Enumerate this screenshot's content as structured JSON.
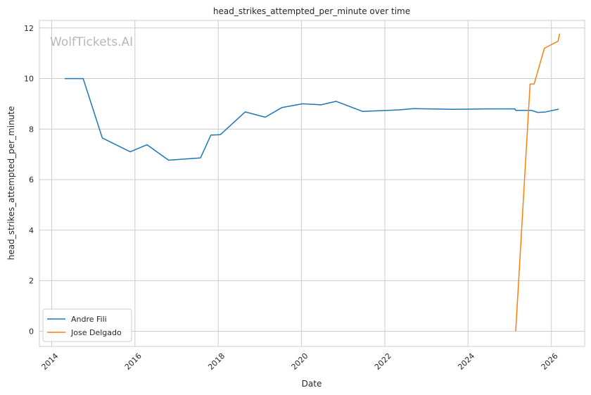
{
  "chart_data": {
    "type": "line",
    "title": "head_strikes_attempted_per_minute over time",
    "xlabel": "Date",
    "ylabel": "head_strikes_attempted_per_minute",
    "watermark": "WolfTickets.AI",
    "xlim": [
      "2013-09-15",
      "2026-10-20"
    ],
    "ylim": [
      -0.6,
      12.3
    ],
    "x_ticks": [
      "2014",
      "2016",
      "2018",
      "2020",
      "2022",
      "2024",
      "2026"
    ],
    "y_ticks": [
      0,
      2,
      4,
      6,
      8,
      10,
      12
    ],
    "grid": true,
    "legend_position": "lower-left",
    "series": [
      {
        "name": "Andre Fili",
        "color": "#1f77b4",
        "points": [
          {
            "x": "2014-04-26",
            "y": 10.0
          },
          {
            "x": "2014-10-04",
            "y": 10.0
          },
          {
            "x": "2015-03-21",
            "y": 7.65
          },
          {
            "x": "2015-11-21",
            "y": 7.1
          },
          {
            "x": "2016-04-16",
            "y": 7.38
          },
          {
            "x": "2016-10-22",
            "y": 6.77
          },
          {
            "x": "2017-07-29",
            "y": 6.86
          },
          {
            "x": "2017-10-28",
            "y": 7.76
          },
          {
            "x": "2018-01-20",
            "y": 7.78
          },
          {
            "x": "2018-08-25",
            "y": 8.68
          },
          {
            "x": "2019-02-17",
            "y": 8.47
          },
          {
            "x": "2019-07-13",
            "y": 8.85
          },
          {
            "x": "2020-01-11",
            "y": 9.0
          },
          {
            "x": "2020-06-20",
            "y": 8.96
          },
          {
            "x": "2020-10-31",
            "y": 9.1
          },
          {
            "x": "2021-06-19",
            "y": 8.7
          },
          {
            "x": "2022-04-30",
            "y": 8.76
          },
          {
            "x": "2022-09-10",
            "y": 8.81
          },
          {
            "x": "2023-08-12",
            "y": 8.78
          },
          {
            "x": "2024-01-13",
            "y": 8.79
          },
          {
            "x": "2024-06-08",
            "y": 8.8
          },
          {
            "x": "2025-02-15",
            "y": 8.8
          },
          {
            "x": "2025-02-22",
            "y": 8.74
          },
          {
            "x": "2025-07-12",
            "y": 8.74
          },
          {
            "x": "2025-09-01",
            "y": 8.66
          },
          {
            "x": "2025-11-01",
            "y": 8.67
          },
          {
            "x": "2026-03-07",
            "y": 8.79
          }
        ]
      },
      {
        "name": "Jose Delgado",
        "color": "#ff7f0e",
        "points": [
          {
            "x": "2025-02-22",
            "y": 0.0
          },
          {
            "x": "2025-06-28",
            "y": 9.78
          },
          {
            "x": "2025-08-02",
            "y": 9.78
          },
          {
            "x": "2025-11-01",
            "y": 11.2
          },
          {
            "x": "2026-03-01",
            "y": 11.48
          },
          {
            "x": "2026-03-14",
            "y": 11.78
          }
        ]
      }
    ]
  }
}
